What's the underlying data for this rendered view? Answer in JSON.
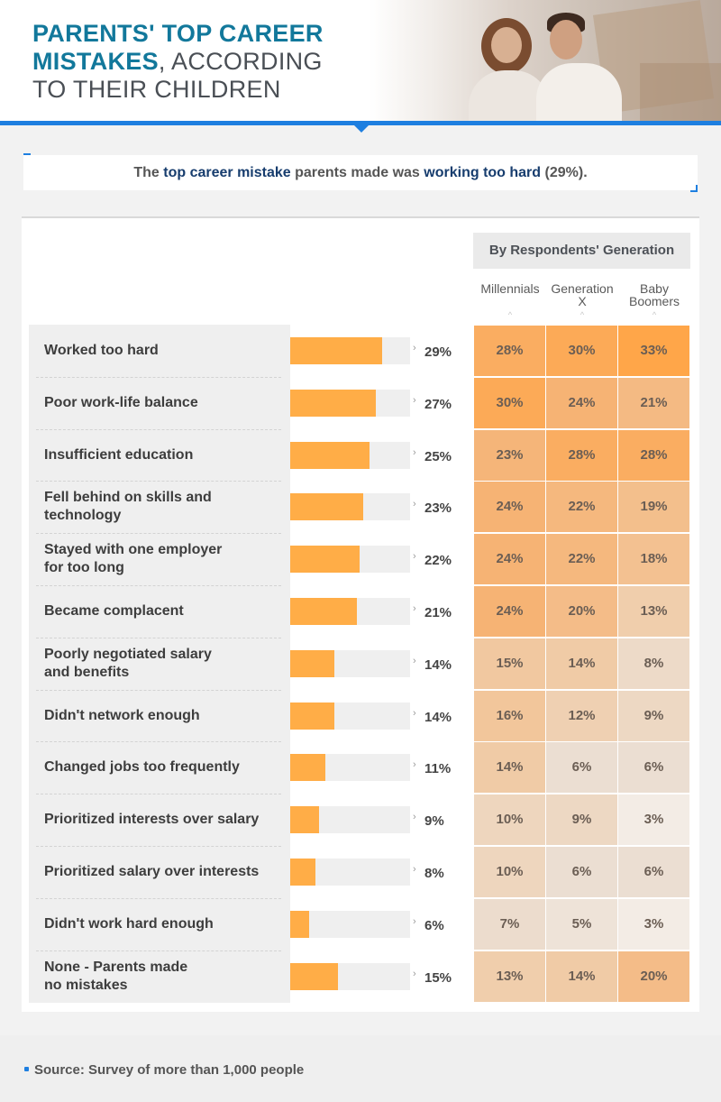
{
  "title": {
    "line1": "PARENTS' TOP CAREER",
    "line2_bold": "MISTAKES",
    "line2_light": ", ACCORDING",
    "line3": "TO THEIR CHILDREN"
  },
  "callout": {
    "pre": "The ",
    "hl1": "top career mistake",
    "mid": " parents made was ",
    "hl2": "working too hard",
    "post": " (29%)."
  },
  "generation_header": "By Respondents' Generation",
  "colors": {
    "bar": "#ffad47",
    "blue": "#1e7fe0",
    "title": "#12789b"
  },
  "chart_data": {
    "type": "bar",
    "categories": [
      "Worked too hard",
      "Poor work-life balance",
      "Insufficient education",
      "Fell behind on skills and technology",
      "Stayed with one employer for too long",
      "Became complacent",
      "Poorly negotiated salary and benefits",
      "Didn't network enough",
      "Changed jobs too frequently",
      "Prioritized interests over salary",
      "Prioritized salary over interests",
      "Didn't work hard enough",
      "None - Parents made no mistakes"
    ],
    "label_lines": [
      [
        "Worked too hard"
      ],
      [
        "Poor work-life balance"
      ],
      [
        "Insufficient education"
      ],
      [
        "Fell behind on skills and",
        "technology"
      ],
      [
        "Stayed with one employer",
        "for too long"
      ],
      [
        "Became complacent"
      ],
      [
        "Poorly negotiated salary",
        "and benefits"
      ],
      [
        "Didn't network enough"
      ],
      [
        "Changed jobs too frequently"
      ],
      [
        "Prioritized interests over salary"
      ],
      [
        "Prioritized salary over interests"
      ],
      [
        "Didn't work hard enough"
      ],
      [
        "None - Parents made",
        "no mistakes"
      ]
    ],
    "values": [
      29,
      27,
      25,
      23,
      22,
      21,
      14,
      14,
      11,
      9,
      8,
      6,
      15
    ],
    "labels": [
      "29%",
      "27%",
      "25%",
      "23%",
      "22%",
      "21%",
      "14%",
      "14%",
      "11%",
      "9%",
      "8%",
      "6%",
      "15%"
    ],
    "xlim": [
      0,
      38
    ],
    "heatmap": {
      "columns": [
        "Millennials",
        "Generation X",
        "Baby Boomers"
      ],
      "column_lines": [
        [
          "Millennials"
        ],
        [
          "Generation",
          "X"
        ],
        [
          "Baby",
          "Boomers"
        ]
      ],
      "values": [
        [
          28,
          30,
          33
        ],
        [
          30,
          24,
          21
        ],
        [
          23,
          28,
          28
        ],
        [
          24,
          22,
          19
        ],
        [
          24,
          22,
          18
        ],
        [
          24,
          20,
          13
        ],
        [
          15,
          14,
          8
        ],
        [
          16,
          12,
          9
        ],
        [
          14,
          6,
          6
        ],
        [
          10,
          9,
          3
        ],
        [
          10,
          6,
          6
        ],
        [
          7,
          5,
          3
        ],
        [
          13,
          14,
          20
        ]
      ],
      "labels": [
        [
          "28%",
          "30%",
          "33%"
        ],
        [
          "30%",
          "24%",
          "21%"
        ],
        [
          "23%",
          "28%",
          "28%"
        ],
        [
          "24%",
          "22%",
          "19%"
        ],
        [
          "24%",
          "22%",
          "18%"
        ],
        [
          "24%",
          "20%",
          "13%"
        ],
        [
          "15%",
          "14%",
          "8%"
        ],
        [
          "16%",
          "12%",
          "9%"
        ],
        [
          "14%",
          "6%",
          "6%"
        ],
        [
          "10%",
          "9%",
          "3%"
        ],
        [
          "10%",
          "6%",
          "6%"
        ],
        [
          "7%",
          "5%",
          "3%"
        ],
        [
          "13%",
          "14%",
          "20%"
        ]
      ]
    }
  },
  "source": "Source: Survey of more than 1,000 people"
}
